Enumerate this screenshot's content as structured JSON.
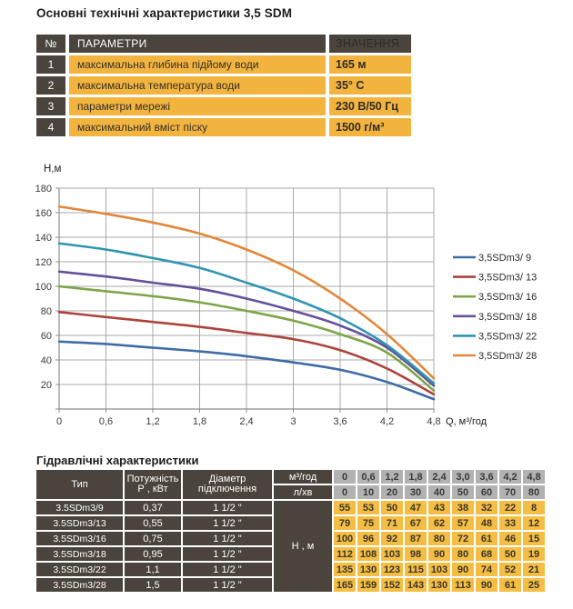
{
  "title": "Основні технічні характеристики 3,5 SDM",
  "colors": {
    "dark_cell": "#4A443C",
    "yellow_cell_top": "#F2B43E",
    "yellow_cell_bottom": "#F4BE44",
    "gray_cell": "#B2B2B2",
    "grid_line": "#A8A8A8",
    "axis_line": "#8C8C8C",
    "text_dark": "#33302B"
  },
  "specs": {
    "headers": {
      "num": "№",
      "param": "ПАРАМЕТРИ",
      "value": "ЗНАЧЕННЯ"
    },
    "rows": [
      {
        "num": "1",
        "param": "максимальна глибина підйому води",
        "value": "165 м"
      },
      {
        "num": "2",
        "param": "максимальна температура води",
        "value": "35° C"
      },
      {
        "num": "3",
        "param": "параметри мережі",
        "value": "230 В/50 Гц"
      },
      {
        "num": "4",
        "param": "максимальний вміст піску",
        "value": "1500 г/м³"
      }
    ]
  },
  "chart_data": {
    "type": "line",
    "title": "",
    "ylabel": "Н,м",
    "xlabel": "Q,  м³/год",
    "x": [
      0,
      0.6,
      1.2,
      1.8,
      2.4,
      3.0,
      3.6,
      4.2,
      4.8
    ],
    "x_tick_labels": [
      "0",
      "0,6",
      "1,2",
      "1,8",
      "2,4",
      "3",
      "3,6",
      "4,2",
      "4,8"
    ],
    "xlim": [
      0,
      4.8
    ],
    "ylim": [
      0,
      180
    ],
    "y_ticks": [
      20,
      40,
      60,
      80,
      100,
      120,
      140,
      160,
      180
    ],
    "grid": true,
    "legend_position": "right",
    "series": [
      {
        "name": "3,5SDm3/ 9",
        "color": "#3F6CA6",
        "values": [
          55,
          53,
          50,
          47,
          43,
          38,
          32,
          22,
          8
        ]
      },
      {
        "name": "3,5SDm3/ 13",
        "color": "#AC443D",
        "values": [
          79,
          75,
          71,
          67,
          62,
          57,
          48,
          33,
          12
        ]
      },
      {
        "name": "3,5SDm3/ 16",
        "color": "#7EA548",
        "values": [
          100,
          96,
          92,
          87,
          80,
          72,
          61,
          46,
          15
        ]
      },
      {
        "name": "3,5SDm3/ 18",
        "color": "#66509A",
        "values": [
          112,
          108,
          103,
          98,
          90,
          80,
          68,
          50,
          19
        ]
      },
      {
        "name": "3,5SDm3/ 22",
        "color": "#3095B2",
        "values": [
          135,
          130,
          123,
          115,
          103,
          90,
          74,
          52,
          21
        ]
      },
      {
        "name": "3,5SDm3/ 28",
        "color": "#E2873A",
        "values": [
          165,
          159,
          152,
          143,
          130,
          113,
          90,
          61,
          25
        ]
      }
    ]
  },
  "hydraulics": {
    "title": "Гідравлічні характеристики",
    "col_headers": {
      "type": "Тип",
      "power_l1": "Потужність",
      "power_l2": "Р , кВт",
      "diameter_l1": "Діаметр",
      "diameter_l2": "підключення",
      "flow_m3": "м³/год",
      "flow_l": "л/хв",
      "head": "Н , м"
    },
    "flow_m3_values": [
      "0",
      "0,6",
      "1,2",
      "1,8",
      "2,4",
      "3,0",
      "3,6",
      "4,2",
      "4,8"
    ],
    "flow_l_values": [
      "0",
      "10",
      "20",
      "30",
      "40",
      "50",
      "60",
      "70",
      "80"
    ],
    "rows": [
      {
        "type": "3.5SDm3/9",
        "power": "0,37",
        "diameter": "1 1/2 \"",
        "values": [
          "55",
          "53",
          "50",
          "47",
          "43",
          "38",
          "32",
          "22",
          "8"
        ]
      },
      {
        "type": "3.5SDm3/13",
        "power": "0,55",
        "diameter": "1 1/2 \"",
        "values": [
          "79",
          "75",
          "71",
          "67",
          "62",
          "57",
          "48",
          "33",
          "12"
        ]
      },
      {
        "type": "3.5SDm3/16",
        "power": "0,75",
        "diameter": "1 1/2 \"",
        "values": [
          "100",
          "96",
          "92",
          "87",
          "80",
          "72",
          "61",
          "46",
          "15"
        ]
      },
      {
        "type": "3.5SDm3/18",
        "power": "0,95",
        "diameter": "1 1/2 \"",
        "values": [
          "112",
          "108",
          "103",
          "98",
          "90",
          "80",
          "68",
          "50",
          "19"
        ]
      },
      {
        "type": "3.5SDm3/22",
        "power": "1,1",
        "diameter": "1 1/2 \"",
        "values": [
          "135",
          "130",
          "123",
          "115",
          "103",
          "90",
          "74",
          "52",
          "21"
        ]
      },
      {
        "type": "3.5SDm3/28",
        "power": "1,5",
        "diameter": "1 1/2 \"",
        "values": [
          "165",
          "159",
          "152",
          "143",
          "130",
          "113",
          "90",
          "61",
          "25"
        ]
      }
    ]
  }
}
